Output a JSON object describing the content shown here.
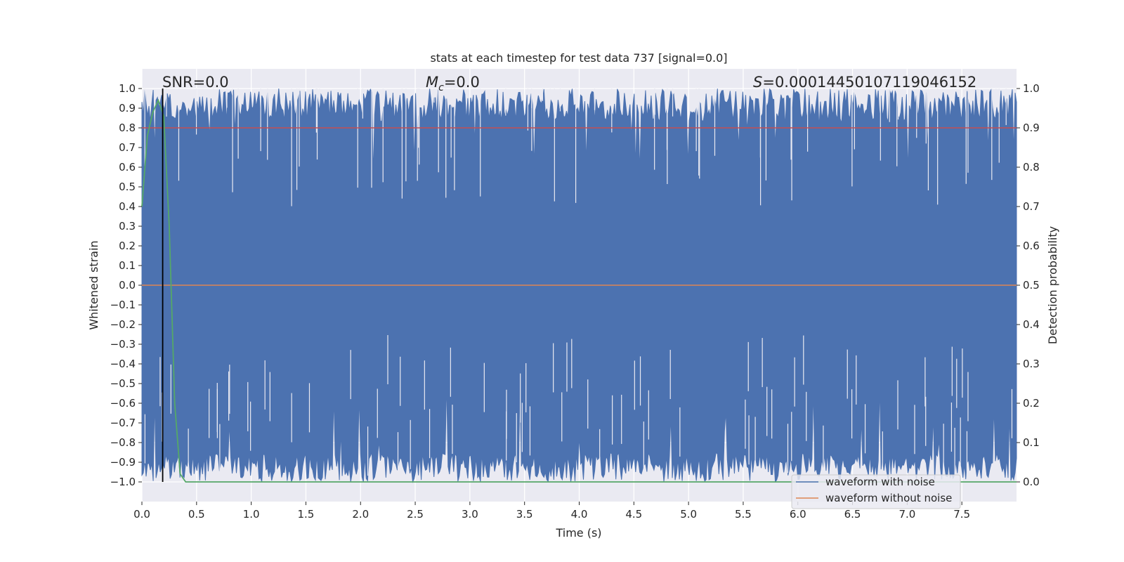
{
  "chart_data": {
    "type": "line",
    "title": "stats at each timestep for test data 737 [signal=0.0]",
    "xlabel": "Time (s)",
    "ylabel": "Whitened strain",
    "y2label": "Detection probability",
    "xlim": [
      0.0,
      8.0
    ],
    "ylim": [
      -1.1,
      1.1
    ],
    "y2lim": [
      -0.05,
      1.05
    ],
    "xticks": [
      "0.0",
      "0.5",
      "1.0",
      "1.5",
      "2.0",
      "2.5",
      "3.0",
      "3.5",
      "4.0",
      "4.5",
      "5.0",
      "5.5",
      "6.0",
      "6.5",
      "7.0",
      "7.5"
    ],
    "yticks": [
      "1.0",
      "0.9",
      "0.8",
      "0.7",
      "0.6",
      "0.5",
      "0.4",
      "0.3",
      "0.2",
      "0.1",
      "0.0",
      "−0.1",
      "−0.2",
      "−0.3",
      "−0.4",
      "−0.5",
      "−0.6",
      "−0.7",
      "−0.8",
      "−0.9",
      "−1.0"
    ],
    "y2ticks": [
      "1.0",
      "0.9",
      "0.8",
      "0.7",
      "0.6",
      "0.5",
      "0.4",
      "0.3",
      "0.2",
      "0.1",
      "0.0"
    ],
    "annotations": {
      "snr": "SNR=0.0",
      "mc_symbol": "M",
      "mc_sub": "c",
      "mc_value": "=0.0",
      "s_symbol": "S",
      "s_value": "=0.00014450107119046152"
    },
    "series": [
      {
        "name": "waveform with noise",
        "color": "#4c72b0",
        "description": "dense noisy strain oscillating between -1.0 and 1.0 across the full time range"
      },
      {
        "name": "waveform without noise",
        "color": "#dd8452",
        "constant_value": 0.0
      },
      {
        "name": "detection probability",
        "color": "#55a868",
        "axis": "right",
        "x": [
          0.0,
          0.05,
          0.1,
          0.15,
          0.2,
          0.25,
          0.3,
          0.35,
          0.4,
          8.0
        ],
        "values": [
          0.7,
          0.88,
          0.94,
          0.97,
          0.93,
          0.65,
          0.2,
          0.02,
          0.0,
          0.0
        ]
      }
    ],
    "hlines": [
      {
        "axis": "right",
        "y": 0.9,
        "color": "#c44e52"
      }
    ],
    "vlines": [
      {
        "x": 0.19,
        "color": "#000000"
      }
    ],
    "legend": {
      "position": "lower-right",
      "entries": [
        "waveform with noise",
        "waveform without noise"
      ]
    }
  }
}
